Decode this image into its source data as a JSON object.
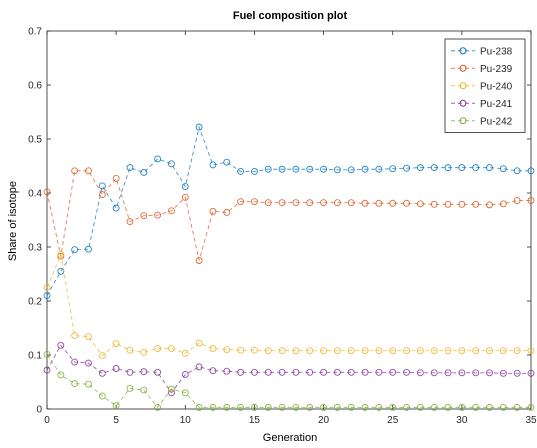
{
  "chart_data": {
    "type": "line",
    "title": "Fuel composition plot",
    "xlabel": "Generation",
    "ylabel": "Share of isotope",
    "xlim": [
      0,
      35
    ],
    "ylim": [
      0,
      0.7
    ],
    "xticks": [
      0,
      5,
      10,
      15,
      20,
      25,
      30,
      35
    ],
    "yticks": [
      0,
      0.1,
      0.2,
      0.3,
      0.4,
      0.5,
      0.6,
      0.7
    ],
    "xtick_labels": [
      "0",
      "5",
      "10",
      "15",
      "20",
      "25",
      "30",
      "35"
    ],
    "ytick_labels": [
      "0",
      "0.1",
      "0.2",
      "0.3",
      "0.4",
      "0.5",
      "0.6",
      "0.7"
    ],
    "grid": false,
    "legend_position": "top-right",
    "line_style": "dashed",
    "marker": "circle",
    "x": [
      0,
      1,
      2,
      3,
      4,
      5,
      6,
      7,
      8,
      9,
      10,
      11,
      12,
      13,
      14,
      15,
      16,
      17,
      18,
      19,
      20,
      21,
      22,
      23,
      24,
      25,
      26,
      27,
      28,
      29,
      30,
      31,
      32,
      33,
      34,
      35
    ],
    "series": [
      {
        "name": "Pu-238",
        "color": "#0072BD",
        "values": [
          0.21,
          0.255,
          0.295,
          0.296,
          0.413,
          0.372,
          0.447,
          0.438,
          0.463,
          0.454,
          0.412,
          0.522,
          0.452,
          0.457,
          0.44,
          0.44,
          0.444,
          0.444,
          0.444,
          0.444,
          0.444,
          0.443,
          0.443,
          0.444,
          0.444,
          0.445,
          0.446,
          0.447,
          0.447,
          0.447,
          0.447,
          0.447,
          0.447,
          0.445,
          0.441,
          0.441
        ]
      },
      {
        "name": "Pu-239",
        "color": "#D95319",
        "values": [
          0.402,
          0.283,
          0.441,
          0.441,
          0.397,
          0.427,
          0.347,
          0.358,
          0.359,
          0.367,
          0.392,
          0.275,
          0.366,
          0.364,
          0.384,
          0.384,
          0.382,
          0.382,
          0.382,
          0.382,
          0.382,
          0.382,
          0.382,
          0.381,
          0.381,
          0.381,
          0.381,
          0.38,
          0.379,
          0.379,
          0.379,
          0.379,
          0.378,
          0.38,
          0.386,
          0.386
        ]
      },
      {
        "name": "Pu-240",
        "color": "#EDB120",
        "values": [
          0.225,
          0.286,
          0.136,
          0.134,
          0.099,
          0.121,
          0.109,
          0.105,
          0.112,
          0.112,
          0.103,
          0.122,
          0.112,
          0.11,
          0.109,
          0.109,
          0.108,
          0.108,
          0.108,
          0.108,
          0.108,
          0.108,
          0.108,
          0.108,
          0.108,
          0.108,
          0.108,
          0.108,
          0.108,
          0.108,
          0.108,
          0.108,
          0.108,
          0.108,
          0.108,
          0.108
        ]
      },
      {
        "name": "Pu-241",
        "color": "#7E2F8E",
        "values": [
          0.072,
          0.118,
          0.087,
          0.085,
          0.066,
          0.075,
          0.068,
          0.069,
          0.068,
          0.03,
          0.064,
          0.078,
          0.071,
          0.07,
          0.068,
          0.068,
          0.068,
          0.068,
          0.068,
          0.068,
          0.068,
          0.068,
          0.068,
          0.068,
          0.068,
          0.068,
          0.068,
          0.067,
          0.067,
          0.067,
          0.067,
          0.067,
          0.067,
          0.066,
          0.066,
          0.066
        ]
      },
      {
        "name": "Pu-242",
        "color": "#77AC30",
        "values": [
          0.101,
          0.063,
          0.047,
          0.046,
          0.024,
          0.006,
          0.038,
          0.035,
          0.003,
          0.037,
          0.03,
          0.003,
          0.003,
          0.003,
          0.003,
          0.003,
          0.003,
          0.003,
          0.003,
          0.003,
          0.003,
          0.003,
          0.003,
          0.003,
          0.003,
          0.003,
          0.003,
          0.003,
          0.003,
          0.003,
          0.003,
          0.003,
          0.003,
          0.003,
          0.003,
          0.003
        ]
      }
    ]
  }
}
